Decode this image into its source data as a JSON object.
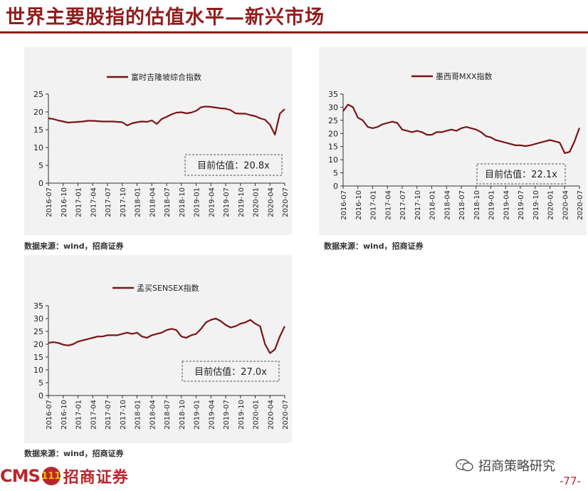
{
  "page": {
    "title": "世界主要股指的估值水平—新兴市场",
    "page_number": "-77-"
  },
  "source_note": "数据来源：wind，招商证券",
  "footer": {
    "logo_en": "CMS",
    "logo_badge": "111",
    "logo_cn": "招商证券",
    "wechat_label": "招商策略研究"
  },
  "colors": {
    "line": "#7b1414",
    "title": "#8f1d1d",
    "panel_bg": "#f2f2f2"
  },
  "chart_data": [
    {
      "type": "line",
      "legend": "富时吉隆坡综合指数",
      "ylim": [
        0,
        25
      ],
      "yticks": [
        0,
        5,
        10,
        15,
        20,
        25
      ],
      "xlim": [
        "2016-07",
        "2020-07"
      ],
      "xticks": [
        "2016-07",
        "2016-10",
        "2017-01",
        "2017-04",
        "2017-07",
        "2017-10",
        "2018-01",
        "2018-04",
        "2018-07",
        "2018-10",
        "2019-01",
        "2019-04",
        "2019-07",
        "2019-10",
        "2020-01",
        "2020-04",
        "2020-07"
      ],
      "annotation": "目前估值：20.8x",
      "x": [
        "2016-07",
        "2016-08",
        "2016-09",
        "2016-10",
        "2016-11",
        "2016-12",
        "2017-01",
        "2017-02",
        "2017-03",
        "2017-04",
        "2017-05",
        "2017-06",
        "2017-07",
        "2017-08",
        "2017-09",
        "2017-10",
        "2017-11",
        "2017-12",
        "2018-01",
        "2018-02",
        "2018-03",
        "2018-04",
        "2018-05",
        "2018-06",
        "2018-07",
        "2018-08",
        "2018-09",
        "2018-10",
        "2018-11",
        "2018-12",
        "2019-01",
        "2019-02",
        "2019-03",
        "2019-04",
        "2019-05",
        "2019-06",
        "2019-07",
        "2019-08",
        "2019-09",
        "2019-10",
        "2019-11",
        "2019-12",
        "2020-01",
        "2020-02",
        "2020-03",
        "2020-04",
        "2020-05",
        "2020-06",
        "2020-07"
      ],
      "values": [
        18.2,
        18.0,
        17.6,
        17.3,
        17.0,
        17.1,
        17.2,
        17.3,
        17.5,
        17.5,
        17.4,
        17.3,
        17.3,
        17.3,
        17.2,
        17.1,
        16.2,
        16.8,
        17.1,
        17.3,
        17.2,
        17.6,
        16.6,
        18.0,
        18.6,
        19.3,
        19.8,
        19.9,
        19.6,
        19.8,
        20.3,
        21.3,
        21.5,
        21.4,
        21.2,
        21.0,
        20.9,
        20.5,
        19.6,
        19.5,
        19.5,
        19.1,
        18.8,
        18.2,
        17.8,
        16.4,
        13.6,
        19.5,
        20.8
      ]
    },
    {
      "type": "line",
      "legend": "墨西哥MXX指数",
      "ylim": [
        0,
        35
      ],
      "yticks": [
        0,
        5,
        10,
        15,
        20,
        25,
        30,
        35
      ],
      "xlim": [
        "2016-07",
        "2020-07"
      ],
      "xticks": [
        "2016-07",
        "2016-10",
        "2017-01",
        "2017-04",
        "2017-07",
        "2017-10",
        "2018-01",
        "2018-04",
        "2018-07",
        "2018-10",
        "2019-01",
        "2019-04",
        "2019-07",
        "2019-10",
        "2020-01",
        "2020-04",
        "2020-07"
      ],
      "annotation": "目前估值：22.1x",
      "x": [
        "2016-07",
        "2016-08",
        "2016-09",
        "2016-10",
        "2016-11",
        "2016-12",
        "2017-01",
        "2017-02",
        "2017-03",
        "2017-04",
        "2017-05",
        "2017-06",
        "2017-07",
        "2017-08",
        "2017-09",
        "2017-10",
        "2017-11",
        "2017-12",
        "2018-01",
        "2018-02",
        "2018-03",
        "2018-04",
        "2018-05",
        "2018-06",
        "2018-07",
        "2018-08",
        "2018-09",
        "2018-10",
        "2018-11",
        "2018-12",
        "2019-01",
        "2019-02",
        "2019-03",
        "2019-04",
        "2019-05",
        "2019-06",
        "2019-07",
        "2019-08",
        "2019-09",
        "2019-10",
        "2019-11",
        "2019-12",
        "2020-01",
        "2020-02",
        "2020-03",
        "2020-04",
        "2020-05",
        "2020-06",
        "2020-07"
      ],
      "values": [
        28.5,
        31.0,
        30.0,
        26.0,
        25.0,
        22.5,
        22.0,
        22.5,
        23.5,
        24.0,
        24.5,
        24.0,
        21.5,
        21.0,
        20.5,
        21.0,
        20.5,
        19.5,
        19.5,
        20.5,
        20.5,
        21.0,
        21.5,
        21.0,
        22.0,
        22.5,
        22.0,
        21.5,
        20.5,
        19.0,
        18.5,
        17.5,
        17.0,
        16.5,
        16.0,
        15.5,
        15.5,
        15.2,
        15.5,
        16.0,
        16.5,
        17.0,
        17.5,
        17.0,
        16.5,
        12.5,
        13.0,
        17.0,
        22.1
      ]
    },
    {
      "type": "line",
      "legend": "孟买SENSEX指数",
      "ylim": [
        0,
        35
      ],
      "yticks": [
        0,
        5,
        10,
        15,
        20,
        25,
        30,
        35
      ],
      "xlim": [
        "2016-07",
        "2020-07"
      ],
      "xticks": [
        "2016-07",
        "2016-10",
        "2017-01",
        "2017-04",
        "2017-07",
        "2017-10",
        "2018-01",
        "2018-04",
        "2018-07",
        "2018-10",
        "2019-01",
        "2019-04",
        "2019-07",
        "2019-10",
        "2020-01",
        "2020-04",
        "2020-07"
      ],
      "annotation": "目前估值：27.0x",
      "x": [
        "2016-07",
        "2016-08",
        "2016-09",
        "2016-10",
        "2016-11",
        "2016-12",
        "2017-01",
        "2017-02",
        "2017-03",
        "2017-04",
        "2017-05",
        "2017-06",
        "2017-07",
        "2017-08",
        "2017-09",
        "2017-10",
        "2017-11",
        "2017-12",
        "2018-01",
        "2018-02",
        "2018-03",
        "2018-04",
        "2018-05",
        "2018-06",
        "2018-07",
        "2018-08",
        "2018-09",
        "2018-10",
        "2018-11",
        "2018-12",
        "2019-01",
        "2019-02",
        "2019-03",
        "2019-04",
        "2019-05",
        "2019-06",
        "2019-07",
        "2019-08",
        "2019-09",
        "2019-10",
        "2019-11",
        "2019-12",
        "2020-01",
        "2020-02",
        "2020-03",
        "2020-04",
        "2020-05",
        "2020-06",
        "2020-07"
      ],
      "values": [
        20.5,
        20.8,
        20.5,
        19.8,
        19.5,
        20.0,
        21.0,
        21.5,
        22.0,
        22.5,
        23.0,
        23.0,
        23.5,
        23.5,
        23.5,
        24.0,
        24.5,
        24.0,
        24.5,
        23.0,
        22.5,
        23.5,
        24.0,
        24.5,
        25.5,
        26.0,
        25.5,
        23.0,
        22.5,
        23.5,
        24.0,
        26.0,
        28.5,
        29.5,
        30.0,
        29.0,
        27.5,
        26.5,
        27.0,
        28.0,
        28.5,
        29.5,
        28.0,
        27.0,
        20.0,
        16.5,
        18.0,
        23.0,
        27.0
      ]
    }
  ]
}
